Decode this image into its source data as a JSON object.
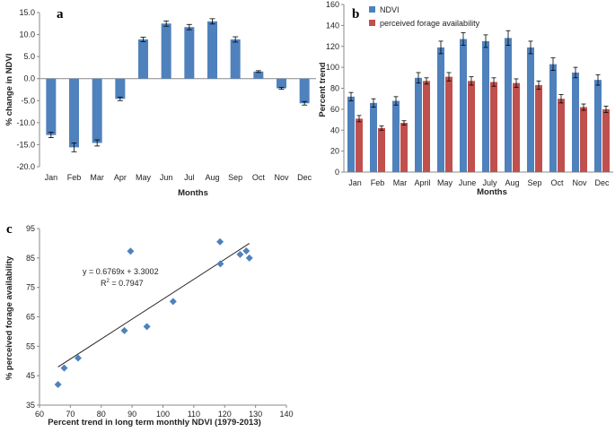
{
  "chart_data": [
    {
      "panel": "a",
      "type": "bar",
      "xlabel": "Months",
      "ylabel": "% change in NDVI",
      "ylim": [
        -20,
        15
      ],
      "yticks": [
        "15.0",
        "10.0",
        "5.0",
        "0.0",
        "-5.0",
        "-10.0",
        "-15.0",
        "-20.0"
      ],
      "categories": [
        "Jan",
        "Feb",
        "Mar",
        "Apr",
        "May",
        "Jun",
        "Jul",
        "Aug",
        "Sep",
        "Oct",
        "Nov",
        "Dec"
      ],
      "values": [
        -12.8,
        -15.6,
        -14.6,
        -4.6,
        8.9,
        12.5,
        11.7,
        13.0,
        8.9,
        1.6,
        -2.2,
        -5.6
      ],
      "errors": [
        0.6,
        1.0,
        0.7,
        0.4,
        0.5,
        0.6,
        0.6,
        0.6,
        0.6,
        0.2,
        0.2,
        0.4
      ],
      "color": "#4f81bd"
    },
    {
      "panel": "b",
      "type": "bar",
      "xlabel": "Months",
      "ylabel": "Percent trend",
      "ylim": [
        0,
        160
      ],
      "yticks": [
        "0",
        "20",
        "40",
        "60",
        "80",
        "100",
        "120",
        "140",
        "160"
      ],
      "categories": [
        "Jan",
        "Feb",
        "Mar",
        "April",
        "May",
        "June",
        "July",
        "Aug",
        "Sep",
        "Oct",
        "Nov",
        "Dec"
      ],
      "series": [
        {
          "name": "NDVI",
          "color": "#4f81bd",
          "values": [
            72,
            66,
            68,
            90,
            119,
            127,
            125,
            128,
            119,
            103,
            95,
            88
          ],
          "errors": [
            4,
            4,
            4,
            5,
            6,
            6,
            6,
            7,
            6,
            6,
            5,
            5
          ]
        },
        {
          "name": "perceived forage availability",
          "color": "#c0504d",
          "values": [
            51,
            42,
            47,
            87,
            91,
            87,
            86,
            85,
            83,
            70,
            62,
            60
          ],
          "errors": [
            3,
            2,
            2,
            3,
            4,
            4,
            4,
            4,
            4,
            4,
            3,
            3
          ]
        }
      ]
    },
    {
      "panel": "c",
      "type": "scatter",
      "xlabel": "Percent trend in long term monthly NDVI (1979-2013)",
      "ylabel": "% perceived forage availability",
      "xlim": [
        60,
        140
      ],
      "ylim": [
        35,
        95
      ],
      "xticks": [
        "60",
        "70",
        "80",
        "90",
        "100",
        "110",
        "120",
        "130",
        "140"
      ],
      "yticks": [
        "35",
        "45",
        "55",
        "65",
        "75",
        "85",
        "95"
      ],
      "points": [
        [
          66,
          42
        ],
        [
          68,
          47.6
        ],
        [
          72.5,
          51
        ],
        [
          87.5,
          60.3
        ],
        [
          89.5,
          87.3
        ],
        [
          94.8,
          61.7
        ],
        [
          103.3,
          70.2
        ],
        [
          118.5,
          90.5
        ],
        [
          118.6,
          83
        ],
        [
          125,
          86.2
        ],
        [
          127,
          87.4
        ],
        [
          128,
          85
        ]
      ],
      "trendline": {
        "slope": 0.6769,
        "intercept": 3.3002,
        "x_range": [
          66,
          128
        ]
      },
      "equation": "y = 0.6769x + 3.3002",
      "r2_label": "R",
      "r2_sup": "2",
      "r2_value": " = 0.7947",
      "color": "#4f81bd"
    }
  ]
}
